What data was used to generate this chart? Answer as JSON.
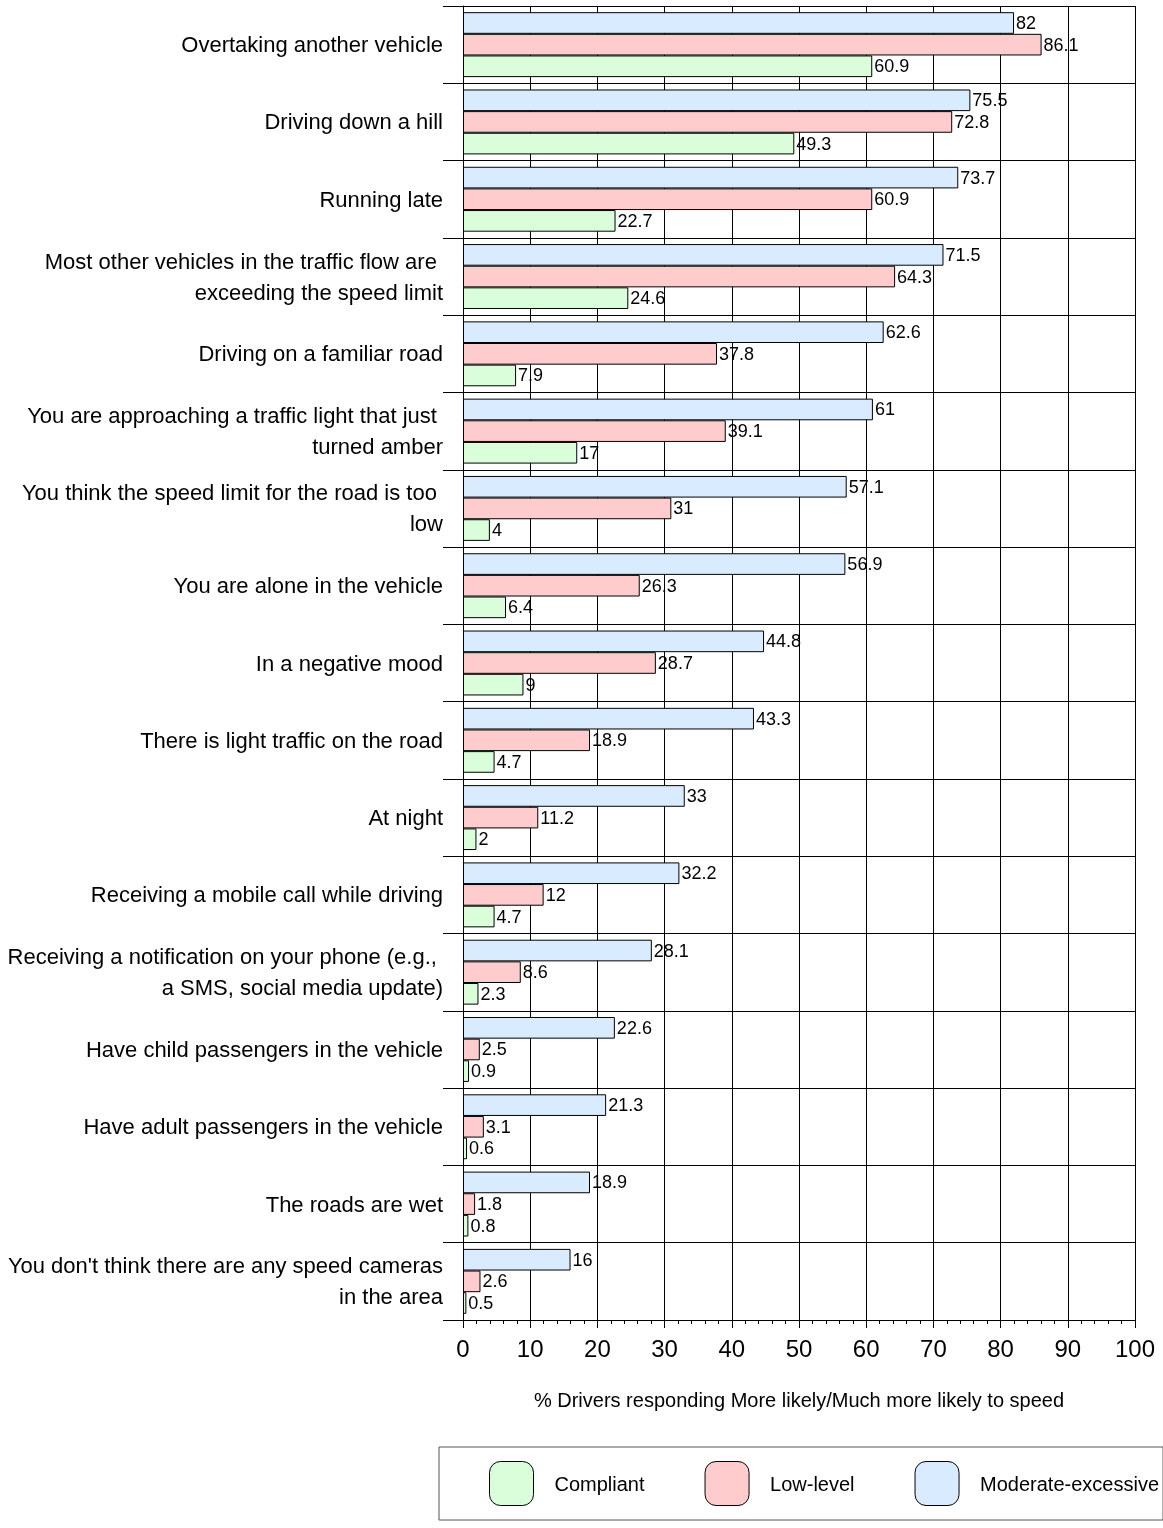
{
  "chart_data": {
    "type": "bar",
    "orientation": "horizontal",
    "xlabel": "% Drivers responding More likely/Much more likely to speed",
    "categories": [
      "Overtaking another vehicle",
      "Driving down a hill",
      "Running late",
      "Most other vehicles in the traffic flow are exceeding the speed limit",
      "Driving on a familiar road",
      "You are approaching a traffic light that just turned amber",
      "You think the speed limit for the road is too low",
      "You are alone in the vehicle",
      "In a negative mood",
      "There is light traffic on the road",
      "At night",
      "Receiving a mobile call while driving",
      "Receiving a notification on your phone (e.g., a SMS, social media update)",
      "Have child passengers in the vehicle",
      "Have adult passengers in the vehicle",
      "The roads are wet",
      "You don't think there are any speed cameras in the area"
    ],
    "series": [
      {
        "name": "Compliant",
        "color": "#d9fed9",
        "values": [
          60.9,
          49.3,
          22.7,
          24.6,
          7.9,
          17,
          4,
          6.4,
          9,
          4.7,
          2,
          4.7,
          2.3,
          0.9,
          0.6,
          0.8,
          0.5
        ]
      },
      {
        "name": "Low-level",
        "color": "#fecccc",
        "values": [
          86.1,
          72.8,
          60.9,
          64.3,
          37.8,
          39.1,
          31,
          26.3,
          28.7,
          18.9,
          11.2,
          12,
          8.6,
          2.5,
          3.1,
          1.8,
          2.6
        ]
      },
      {
        "name": "Moderate-excessive",
        "color": "#d9ebfe",
        "values": [
          82,
          75.5,
          73.7,
          71.5,
          62.6,
          61,
          57.1,
          56.9,
          44.8,
          43.3,
          33,
          32.2,
          28.1,
          22.6,
          21.3,
          18.9,
          16
        ]
      }
    ],
    "xlim": [
      0,
      100
    ],
    "xticks": [
      0,
      10,
      20,
      30,
      40,
      50,
      60,
      70,
      80,
      90,
      100
    ],
    "grid": true,
    "legend": "bottom",
    "data_labels": true
  }
}
